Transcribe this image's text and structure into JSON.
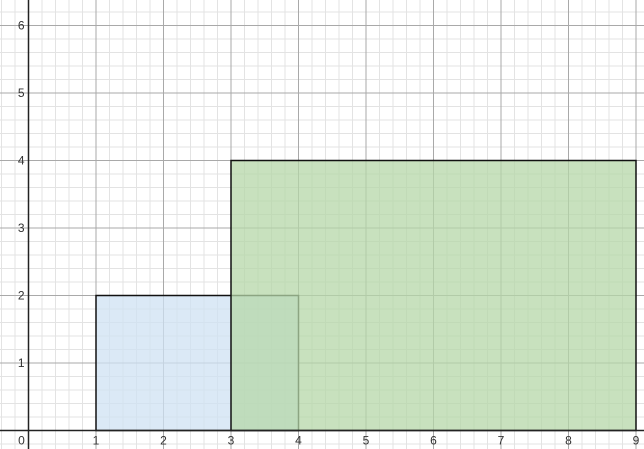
{
  "graph": {
    "x_axis": {
      "ticks": [
        {
          "value": 0,
          "label": "0"
        },
        {
          "value": 1,
          "label": "1"
        },
        {
          "value": 2,
          "label": "2"
        },
        {
          "value": 3,
          "label": "3"
        },
        {
          "value": 4,
          "label": "4"
        },
        {
          "value": 5,
          "label": "5"
        },
        {
          "value": 6,
          "label": "6"
        },
        {
          "value": 7,
          "label": "7"
        },
        {
          "value": 8,
          "label": "8"
        },
        {
          "value": 9,
          "label": "9"
        }
      ]
    },
    "y_axis": {
      "ticks": [
        {
          "value": 1,
          "label": "1"
        },
        {
          "value": 2,
          "label": "2"
        },
        {
          "value": 3,
          "label": "3"
        },
        {
          "value": 4,
          "label": "4"
        },
        {
          "value": 5,
          "label": "5"
        },
        {
          "value": 6,
          "label": "6"
        }
      ]
    },
    "rectangles": [
      {
        "x_min": 1,
        "x_max": 4,
        "y_min": 0,
        "y_max": 2,
        "fill": "#cfe2f3",
        "stroke": "#111111"
      },
      {
        "x_min": 3,
        "x_max": 9,
        "y_min": 0,
        "y_max": 4,
        "fill": "#b6d7a8",
        "stroke": "#111111"
      }
    ]
  }
}
